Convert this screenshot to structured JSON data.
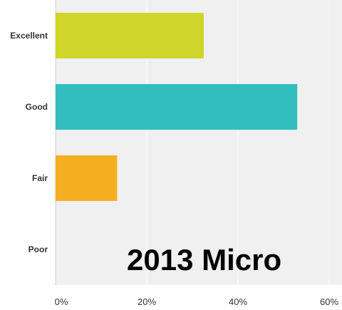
{
  "chart_data": {
    "type": "bar",
    "orientation": "horizontal",
    "categories": [
      "Excellent",
      "Good",
      "Fair",
      "Poor"
    ],
    "values": [
      32.5,
      53,
      13.5,
      0
    ],
    "colors": [
      "#cfd52a",
      "#32bdbf",
      "#f6ae21",
      "#999999"
    ],
    "xlim": [
      0,
      60
    ],
    "xticks": [
      "0%",
      "20%",
      "40%",
      "60%"
    ],
    "grid": true,
    "plot_background": "#f0f0f0",
    "overlay_text": "2013 Micro"
  }
}
